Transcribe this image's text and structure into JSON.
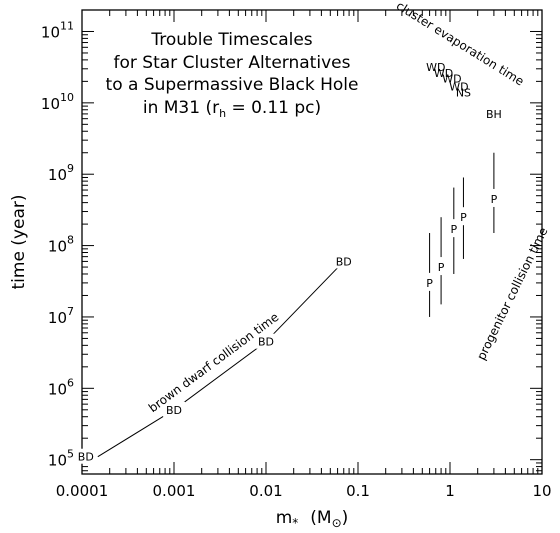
{
  "chart_data": {
    "type": "line",
    "xscale": "log",
    "yscale": "log",
    "xlim": [
      0.0001,
      10
    ],
    "ylim": [
      63000,
      200000000000
    ],
    "xlabel": {
      "main": "m",
      "sub": "*",
      "unit": "(M",
      "unit_sym": "⊙",
      "close": ")"
    },
    "ylabel": "time   (year)",
    "title_lines": [
      "Trouble Timescales",
      "for Star Cluster Alternatives",
      "to a Supermassive Black Hole"
    ],
    "title_last": {
      "pre": "in M31 (r",
      "sub": "h",
      "post": " = 0.11 pc)"
    },
    "x_ticks": [
      {
        "value": 0.0001,
        "label": "0.0001"
      },
      {
        "value": 0.001,
        "label": "0.001"
      },
      {
        "value": 0.01,
        "label": "0.01"
      },
      {
        "value": 0.1,
        "label": "0.1"
      },
      {
        "value": 1,
        "label": "1"
      },
      {
        "value": 10,
        "label": "10"
      }
    ],
    "y_ticks": [
      {
        "value": 100000,
        "base": "10",
        "exp": "5"
      },
      {
        "value": 1000000,
        "base": "10",
        "exp": "6"
      },
      {
        "value": 10000000,
        "base": "10",
        "exp": "7"
      },
      {
        "value": 100000000,
        "base": "10",
        "exp": "8"
      },
      {
        "value": 1000000000,
        "base": "10",
        "exp": "9"
      },
      {
        "value": 10000000000,
        "base": "10",
        "exp": "10"
      },
      {
        "value": 100000000000,
        "base": "10",
        "exp": "11"
      }
    ],
    "brown_dwarf_curve": {
      "annotation": "brown dwarf collision time",
      "points": [
        {
          "x": 0.00011,
          "y": 110000,
          "label": "BD"
        },
        {
          "x": 0.001,
          "y": 500000,
          "label": "BD"
        },
        {
          "x": 0.01,
          "y": 4500000,
          "label": "BD"
        },
        {
          "x": 0.07,
          "y": 60000000,
          "label": "BD"
        }
      ]
    },
    "progenitor_collision": {
      "annotation": "progenitor collision time",
      "bars": [
        {
          "x": 0.6,
          "ymin": 10000000,
          "ymax": 150000000,
          "label": "P",
          "label_y": 30000000
        },
        {
          "x": 0.8,
          "ymin": 15000000,
          "ymax": 250000000,
          "label": "P",
          "label_y": 50000000
        },
        {
          "x": 1.1,
          "ymin": 40000000,
          "ymax": 650000000,
          "label": "P",
          "label_y": 170000000
        },
        {
          "x": 1.4,
          "ymin": 65000000,
          "ymax": 900000000,
          "label": "P",
          "label_y": 250000000
        },
        {
          "x": 3.0,
          "ymin": 150000000,
          "ymax": 2000000000,
          "label": "P",
          "label_y": 450000000
        }
      ]
    },
    "cluster_evaporation": {
      "annotation": "cluster evaporation time",
      "labels": [
        {
          "text": "WD",
          "x": 0.7,
          "y": 32000000000
        },
        {
          "text": "WD",
          "x": 0.85,
          "y": 26000000000
        },
        {
          "text": "WD",
          "x": 1.05,
          "y": 22000000000
        },
        {
          "text": "NS",
          "x": 1.4,
          "y": 14000000000
        },
        {
          "text": "WD",
          "x": 1.25,
          "y": 17000000000
        },
        {
          "text": "BH",
          "x": 3.0,
          "y": 7000000000
        }
      ]
    }
  }
}
